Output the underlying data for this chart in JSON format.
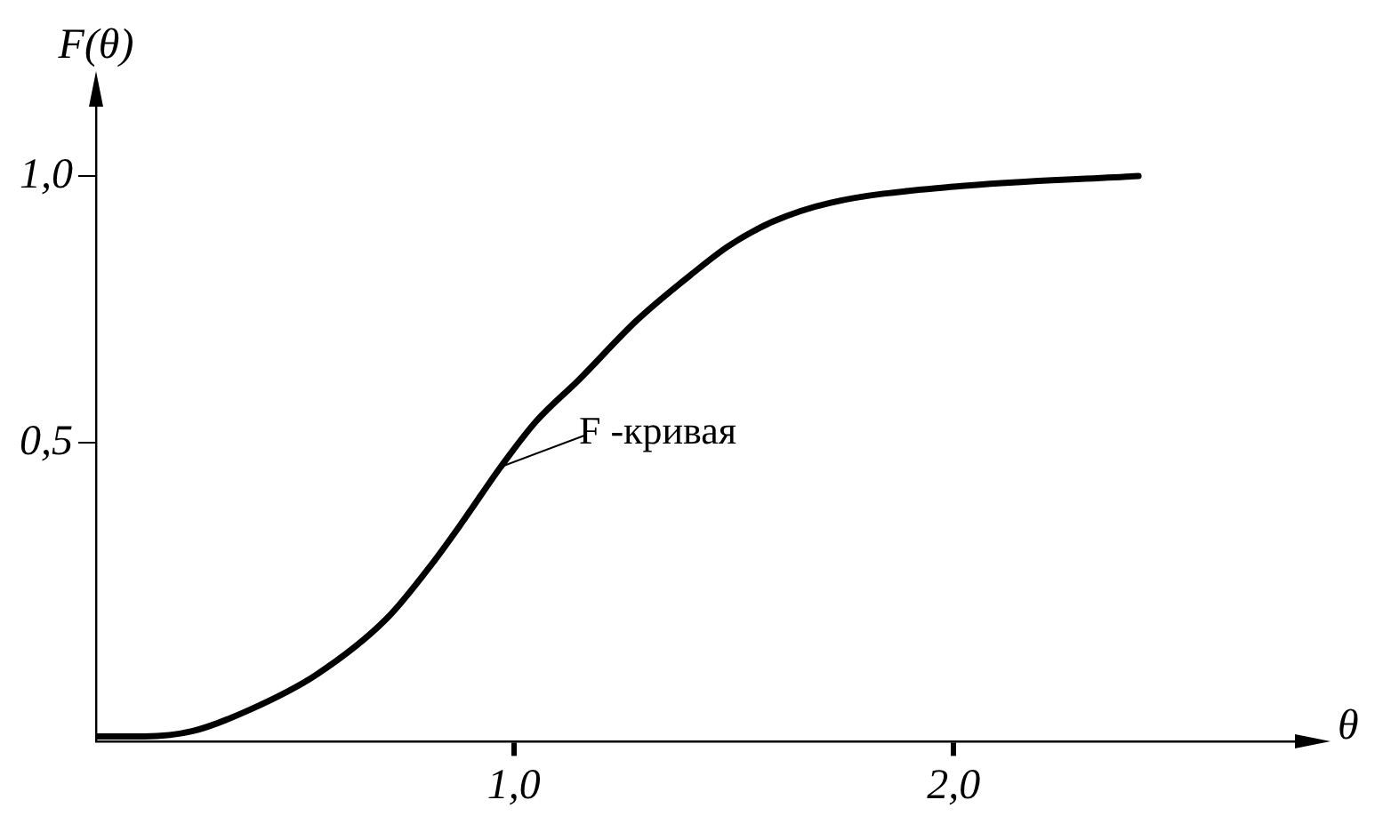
{
  "chart_data": {
    "type": "line",
    "xlabel": "θ",
    "ylabel": "F(θ)",
    "x": [
      0.05,
      0.16,
      0.27,
      0.4,
      0.55,
      0.71,
      0.82,
      0.89,
      0.97,
      1.05,
      1.15,
      1.28,
      1.41,
      1.49,
      1.59,
      1.72,
      2.0,
      2.42
    ],
    "series": [
      {
        "color": "#000000",
        "values": [
          -0.05,
          -0.05,
          -0.04,
          0.0,
          0.065,
          0.17,
          0.28,
          0.36,
          0.455,
          0.54,
          0.62,
          0.73,
          0.82,
          0.87,
          0.915,
          0.95,
          0.98,
          1.0
        ]
      }
    ],
    "xlim": [
      0.05,
      2.8
    ],
    "ylim": [
      -0.06,
      1.15
    ],
    "xticks": [
      {
        "value": 1,
        "label": "1,0"
      },
      {
        "value": 2,
        "label": "2,0"
      }
    ],
    "yticks": [
      {
        "value": 0.5,
        "label": "0,5"
      },
      {
        "value": 1,
        "label": "1,0"
      }
    ],
    "annotations": [
      {
        "text": "F -кривая",
        "x": 0.97,
        "y": 0.455
      }
    ],
    "grid": false,
    "legend": false,
    "marker": "none",
    "line_style": "solid"
  }
}
